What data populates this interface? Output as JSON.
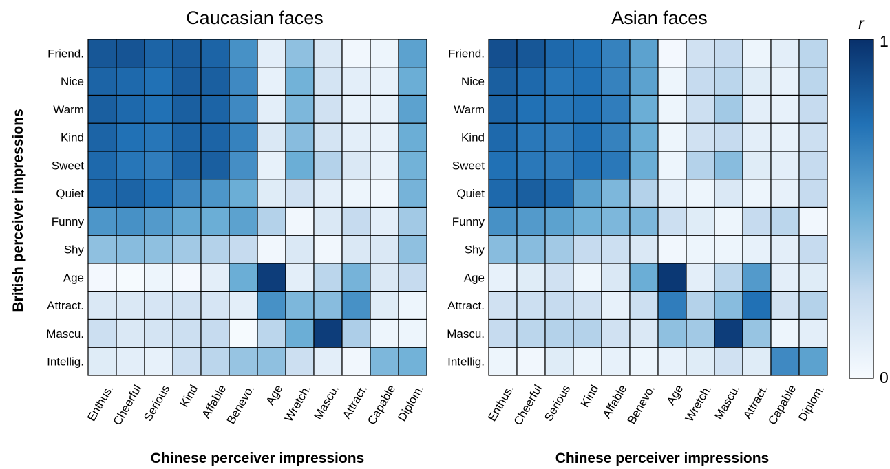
{
  "chart_data": {
    "type": "heatmap",
    "ylabel": "British perceiver impressions",
    "colorbar": {
      "title": "r",
      "min_label": "0",
      "max_label": "1",
      "range": [
        0,
        1
      ],
      "colors": [
        "#f7fbff",
        "#c6dbef",
        "#6baed6",
        "#2171b5",
        "#08306b"
      ]
    },
    "rows": [
      "Friend.",
      "Nice",
      "Warm",
      "Kind",
      "Sweet",
      "Quiet",
      "Funny",
      "Shy",
      "Age",
      "Attract.",
      "Mascu.",
      "Intellig."
    ],
    "columns": [
      "Enthus.",
      "Cheerful",
      "Serious",
      "Kind",
      "Affable",
      "Benevo.",
      "Age",
      "Wretch.",
      "Mascu.",
      "Attract.",
      "Capable",
      "Diplom."
    ],
    "panels": [
      {
        "title": "Caucasian faces",
        "xlabel": "Chinese perceiver impressions",
        "values": [
          [
            0.85,
            0.86,
            0.8,
            0.83,
            0.8,
            0.62,
            0.1,
            0.4,
            0.15,
            0.03,
            0.05,
            0.55
          ],
          [
            0.8,
            0.78,
            0.75,
            0.83,
            0.82,
            0.65,
            0.08,
            0.48,
            0.18,
            0.1,
            0.08,
            0.5
          ],
          [
            0.82,
            0.78,
            0.75,
            0.82,
            0.8,
            0.65,
            0.1,
            0.45,
            0.2,
            0.08,
            0.08,
            0.55
          ],
          [
            0.8,
            0.75,
            0.73,
            0.8,
            0.8,
            0.68,
            0.15,
            0.42,
            0.18,
            0.1,
            0.08,
            0.5
          ],
          [
            0.78,
            0.73,
            0.7,
            0.8,
            0.82,
            0.63,
            0.08,
            0.5,
            0.3,
            0.15,
            0.08,
            0.48
          ],
          [
            0.78,
            0.8,
            0.75,
            0.65,
            0.6,
            0.5,
            0.12,
            0.2,
            0.1,
            0.05,
            0.03,
            0.47
          ],
          [
            0.6,
            0.62,
            0.58,
            0.52,
            0.5,
            0.55,
            0.3,
            0.03,
            0.15,
            0.25,
            0.1,
            0.35
          ],
          [
            0.4,
            0.42,
            0.4,
            0.35,
            0.3,
            0.25,
            0.03,
            0.15,
            0.03,
            0.15,
            0.15,
            0.4
          ],
          [
            0.02,
            0.01,
            0.05,
            0.02,
            0.1,
            0.5,
            0.95,
            0.1,
            0.28,
            0.47,
            0.15,
            0.25
          ],
          [
            0.15,
            0.15,
            0.17,
            0.2,
            0.17,
            0.1,
            0.62,
            0.45,
            0.42,
            0.62,
            0.12,
            0.05
          ],
          [
            0.22,
            0.15,
            0.18,
            0.22,
            0.25,
            0.01,
            0.28,
            0.5,
            0.95,
            0.32,
            0.05,
            0.05
          ],
          [
            0.12,
            0.1,
            0.08,
            0.22,
            0.28,
            0.38,
            0.4,
            0.22,
            0.1,
            0.03,
            0.45,
            0.48
          ]
        ]
      },
      {
        "title": "Asian faces",
        "xlabel": "Chinese perceiver impressions",
        "values": [
          [
            0.88,
            0.85,
            0.78,
            0.75,
            0.68,
            0.55,
            0.02,
            0.2,
            0.25,
            0.05,
            0.1,
            0.28
          ],
          [
            0.82,
            0.78,
            0.73,
            0.75,
            0.68,
            0.55,
            0.05,
            0.25,
            0.28,
            0.12,
            0.08,
            0.28
          ],
          [
            0.8,
            0.75,
            0.73,
            0.75,
            0.7,
            0.5,
            0.05,
            0.22,
            0.35,
            0.1,
            0.08,
            0.25
          ],
          [
            0.78,
            0.72,
            0.7,
            0.75,
            0.68,
            0.5,
            0.05,
            0.2,
            0.25,
            0.1,
            0.08,
            0.22
          ],
          [
            0.75,
            0.72,
            0.7,
            0.75,
            0.72,
            0.5,
            0.05,
            0.3,
            0.42,
            0.12,
            0.1,
            0.25
          ],
          [
            0.78,
            0.82,
            0.78,
            0.55,
            0.45,
            0.3,
            0.08,
            0.05,
            0.15,
            0.05,
            0.08,
            0.25
          ],
          [
            0.62,
            0.58,
            0.55,
            0.48,
            0.45,
            0.45,
            0.22,
            0.12,
            0.05,
            0.25,
            0.28,
            0.03
          ],
          [
            0.42,
            0.42,
            0.35,
            0.25,
            0.22,
            0.15,
            0.03,
            0.05,
            0.05,
            0.08,
            0.1,
            0.25
          ],
          [
            0.08,
            0.12,
            0.2,
            0.05,
            0.15,
            0.5,
            0.97,
            0.1,
            0.28,
            0.58,
            0.1,
            0.12
          ],
          [
            0.2,
            0.22,
            0.25,
            0.2,
            0.08,
            0.22,
            0.7,
            0.3,
            0.42,
            0.75,
            0.2,
            0.3
          ],
          [
            0.25,
            0.28,
            0.3,
            0.3,
            0.2,
            0.15,
            0.4,
            0.35,
            0.95,
            0.38,
            0.05,
            0.1
          ],
          [
            0.05,
            0.03,
            0.12,
            0.05,
            0.08,
            0.05,
            0.08,
            0.12,
            0.2,
            0.12,
            0.65,
            0.55
          ]
        ]
      }
    ]
  }
}
